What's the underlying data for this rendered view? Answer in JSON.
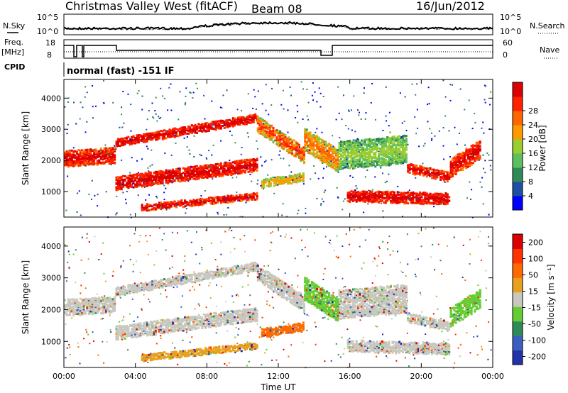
{
  "header": {
    "station": "Christmas Valley West (fitACF)",
    "beam": "Beam 08",
    "date": "16/Jun/2012"
  },
  "top_panel": {
    "left_label": "N.Sky",
    "right_label": "N.Search",
    "left_ticks": [
      "10^5",
      "10^0"
    ],
    "right_ticks": [
      "10^5",
      "10^0"
    ]
  },
  "freq_panel": {
    "left_label_1": "Freq.",
    "left_label_2": "[MHz]",
    "left_ticks": [
      "18",
      "8"
    ],
    "right_label": "Nave",
    "right_ticks": [
      "60",
      "0"
    ]
  },
  "cpid": {
    "label": "CPID",
    "value": "normal (fast) -151 IF"
  },
  "colors": {
    "power": [
      "#0000ff",
      "#1f4fa0",
      "#2e8b57",
      "#5fbf5f",
      "#9acd32",
      "#ff9900",
      "#ff6600",
      "#ff2200",
      "#dd0000"
    ],
    "velocity": [
      "#2233aa",
      "#3a5fbf",
      "#2e8b57",
      "#66cc33",
      "#c8c8c0",
      "#e8a020",
      "#ff6a00",
      "#ff3300",
      "#dd0000"
    ]
  },
  "chart_data": [
    {
      "type": "heatmap",
      "ylabel": "Slant Range [km]",
      "xlabel": "Time UT",
      "x_ticks": [
        "00:00",
        "04:00",
        "08:00",
        "12:00",
        "16:00",
        "20:00",
        "00:00"
      ],
      "y_ticks": [
        "1000",
        "2000",
        "3000",
        "4000"
      ],
      "ylim": [
        180,
        4600
      ],
      "colorbar": {
        "label": "Power [dB]",
        "ticks": [
          "4",
          "8",
          "12",
          "16",
          "20",
          "24",
          "28"
        ]
      }
    },
    {
      "type": "heatmap",
      "ylabel": "Slant Range [km]",
      "xlabel": "Time UT",
      "x_ticks": [
        "00:00",
        "04:00",
        "08:00",
        "12:00",
        "16:00",
        "20:00",
        "00:00"
      ],
      "y_ticks": [
        "1000",
        "2000",
        "3000",
        "4000"
      ],
      "ylim": [
        180,
        4600
      ],
      "colorbar": {
        "label": "Velocity [m s⁻¹]",
        "ticks": [
          "200",
          "100",
          "50",
          "15",
          "-15",
          "-50",
          "-100",
          "-200"
        ]
      }
    }
  ]
}
